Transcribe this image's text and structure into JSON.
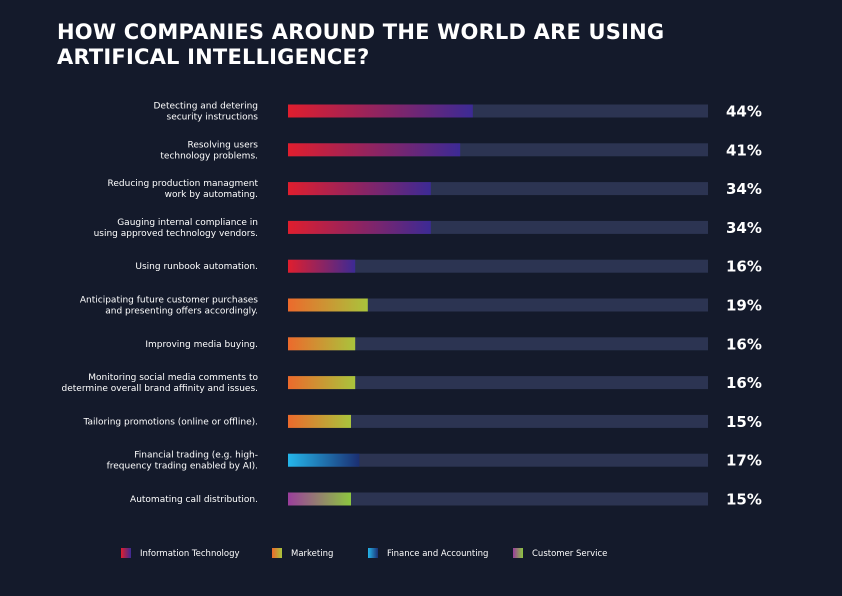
{
  "chart_data": {
    "type": "bar",
    "orientation": "horizontal",
    "title_lines": [
      "HOW COMPANIES AROUND THE WORLD ARE USING",
      "ARTIFICAL INTELLIGENCE?"
    ],
    "xlim": [
      0,
      100
    ],
    "grid": false,
    "legend_position": "bottom",
    "track_color": "#2c3452",
    "series": [
      {
        "name": "Information Technology",
        "gradient": [
          "#e01e2e",
          "#3c2a95"
        ]
      },
      {
        "name": "Marketing",
        "gradient": [
          "#ec6a2c",
          "#a9c43c"
        ]
      },
      {
        "name": "Finance and Accounting",
        "gradient": [
          "#25b6ea",
          "#1b2f72"
        ]
      },
      {
        "name": "Customer Service",
        "gradient": [
          "#9b3e9c",
          "#8cc63f"
        ]
      }
    ],
    "bars": [
      {
        "label_lines": [
          "Detecting and detering",
          "security instructions"
        ],
        "value": 44,
        "value_label": "44%",
        "series": 0
      },
      {
        "label_lines": [
          "Resolving users",
          "technology problems."
        ],
        "value": 41,
        "value_label": "41%",
        "series": 0
      },
      {
        "label_lines": [
          "Reducing production managment",
          "work by automating."
        ],
        "value": 34,
        "value_label": "34%",
        "series": 0
      },
      {
        "label_lines": [
          "Gauging internal compliance in",
          "using approved technology vendors."
        ],
        "value": 34,
        "value_label": "34%",
        "series": 0
      },
      {
        "label_lines": [
          "Using runbook automation."
        ],
        "value": 16,
        "value_label": "16%",
        "series": 0
      },
      {
        "label_lines": [
          "Anticipating future customer purchases",
          "and presenting offers accordingly."
        ],
        "value": 19,
        "value_label": "19%",
        "series": 1
      },
      {
        "label_lines": [
          "Improving media buying."
        ],
        "value": 16,
        "value_label": "16%",
        "series": 1
      },
      {
        "label_lines": [
          "Monitoring social media comments to",
          "determine overall brand affinity and issues."
        ],
        "value": 16,
        "value_label": "16%",
        "series": 1
      },
      {
        "label_lines": [
          "Tailoring promotions (online or offline)."
        ],
        "value": 15,
        "value_label": "15%",
        "series": 1
      },
      {
        "label_lines": [
          "Financial trading (e.g. high-",
          "frequency trading enabled by AI)."
        ],
        "value": 17,
        "value_label": "17%",
        "series": 2
      },
      {
        "label_lines": [
          "Automating call distribution."
        ],
        "value": 15,
        "value_label": "15%",
        "series": 3
      }
    ]
  }
}
